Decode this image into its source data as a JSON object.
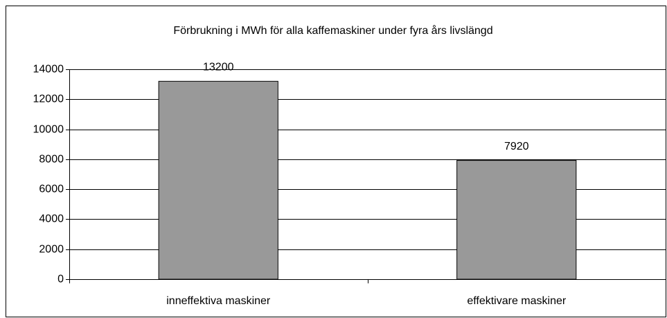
{
  "chart_data": {
    "type": "bar",
    "title": "Förbrukning i MWh för alla kaffemaskiner under fyra års livslängd",
    "categories": [
      "inneffektiva maskiner",
      "effektivare maskiner"
    ],
    "values": [
      13200,
      7920
    ],
    "color": "#999999",
    "ylim": [
      0,
      14000
    ],
    "yticks": [
      0,
      2000,
      4000,
      6000,
      8000,
      10000,
      12000,
      14000
    ],
    "grid": true
  }
}
